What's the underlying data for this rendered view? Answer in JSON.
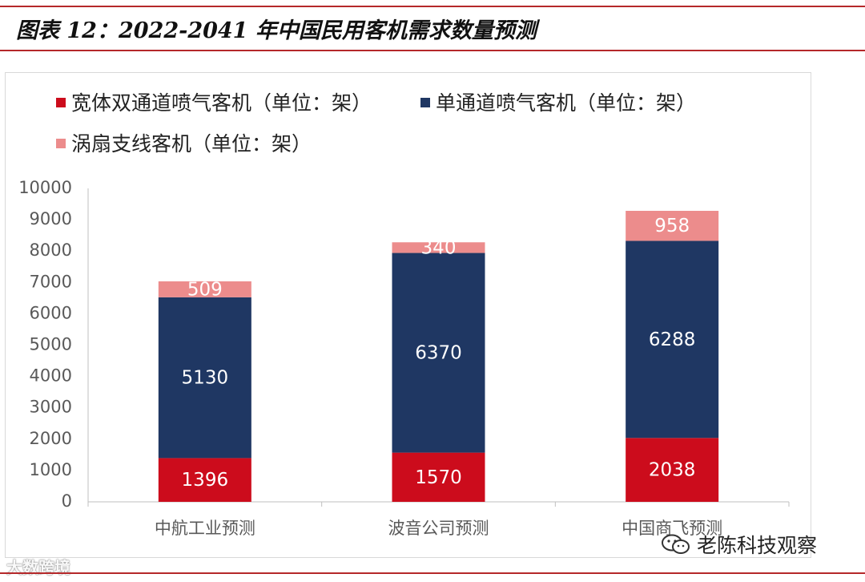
{
  "title": "图表 12：2022-2041 年中国民用客机需求数量预测",
  "colors": {
    "widebody": "#cc0c1c",
    "narrowbody": "#1f3763",
    "regional": "#ec8c8c",
    "rule": "#b5282a",
    "axis_text": "#595959"
  },
  "chart_data": {
    "type": "bar",
    "stacked": true,
    "categories": [
      "中航工业预测",
      "波音公司预测",
      "中国商飞预测"
    ],
    "series": [
      {
        "name": "宽体双通道喷气客机（单位：架）",
        "values": [
          1396,
          1570,
          2038
        ],
        "color": "#cc0c1c"
      },
      {
        "name": "单通道喷气客机（单位：架）",
        "values": [
          5130,
          6370,
          6288
        ],
        "color": "#1f3763"
      },
      {
        "name": "涡扇支线客机（单位：架）",
        "values": [
          509,
          340,
          958
        ],
        "color": "#ec8c8c"
      }
    ],
    "ylim": [
      0,
      10000
    ],
    "yticks": [
      0,
      1000,
      2000,
      3000,
      4000,
      5000,
      6000,
      7000,
      8000,
      9000,
      10000
    ],
    "grid": false,
    "legend": "top-left",
    "xlabel": "",
    "ylabel": ""
  },
  "watermarks": {
    "left": "大数跨境",
    "right": "老陈科技观察"
  }
}
